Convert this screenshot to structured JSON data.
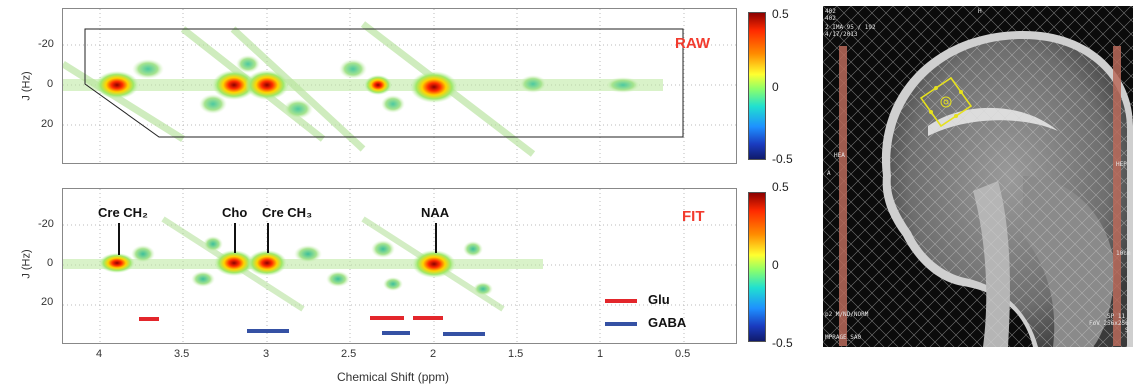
{
  "top_panel": {
    "tag": "RAW",
    "y_label": "J (Hz)",
    "y_ticks": [
      "-20",
      "0",
      "20"
    ]
  },
  "bottom_panel": {
    "tag": "FIT",
    "y_label": "J (Hz)",
    "y_ticks": [
      "-20",
      "0",
      "20"
    ],
    "peaks": [
      {
        "name": "Cre CH₂"
      },
      {
        "name": "Cho"
      },
      {
        "name": "Cre CH₃"
      },
      {
        "name": "NAA"
      }
    ],
    "legend": [
      {
        "name": "Glu",
        "color": "#e3262b"
      },
      {
        "name": "GABA",
        "color": "#3551a4"
      }
    ]
  },
  "x_axis": {
    "label": "Chemical Shift (ppm)",
    "ticks": [
      "4",
      "3.5",
      "3",
      "2.5",
      "2",
      "1.5",
      "1",
      "0.5"
    ]
  },
  "colorbar": {
    "ticks": [
      "0.5",
      "0",
      "-0.5"
    ]
  },
  "mri": {
    "info_top": [
      "402",
      "402",
      "2 IMA 95 / 192",
      "4/17/2013"
    ],
    "top_marker": "H",
    "left_marker": "HEA",
    "left_marker2": "A",
    "right_marker": "HEP",
    "bottom_left": [
      "p2 M/ND/NORM",
      "MPRAGE_SA0"
    ],
    "bottom_right": [
      "SP 11",
      "FoV 256x256",
      "S"
    ],
    "scale_text": "10cm"
  }
}
